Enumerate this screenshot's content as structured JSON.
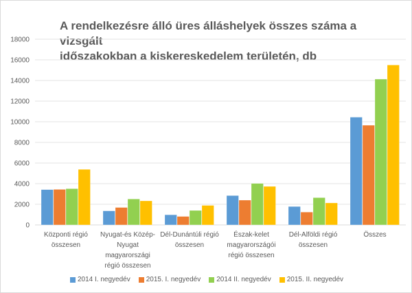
{
  "chart_data": {
    "type": "bar",
    "title": "A rendelkezésre álló üres álláshelyek összes száma a vizsgált\nidőszakokban a kiskereskedelem területén, db",
    "xlabel": "",
    "ylabel": "",
    "ylim": [
      0,
      18000
    ],
    "yticks": [
      0,
      2000,
      4000,
      6000,
      8000,
      10000,
      12000,
      14000,
      16000,
      18000
    ],
    "grid": true,
    "legend_position": "bottom",
    "categories": [
      "Központi régió\nösszesen",
      "Nyugat-és Közép-\nNyugat\nmagyarországi\nrégió összesen",
      "Dél-Dunántúli régió\nösszesen",
      "Észak-kelet\nmagyarországói\nrégió összesen",
      "Dél-Alföldi régió\nösszesen",
      "Összes"
    ],
    "series": [
      {
        "name": "2014 I. negyedév",
        "color": "#5b9bd5",
        "values": [
          3420,
          1360,
          980,
          2840,
          1780,
          10440
        ]
      },
      {
        "name": "2015. I. negyedév",
        "color": "#ed7d31",
        "values": [
          3440,
          1690,
          820,
          2400,
          1240,
          9660
        ]
      },
      {
        "name": "2014 II. negyedév",
        "color": "#92d050",
        "values": [
          3510,
          2510,
          1400,
          4020,
          2640,
          14130
        ]
      },
      {
        "name": "2015. II. negyedév",
        "color": "#ffc000",
        "values": [
          5380,
          2330,
          1890,
          3730,
          2130,
          15500
        ]
      }
    ]
  }
}
